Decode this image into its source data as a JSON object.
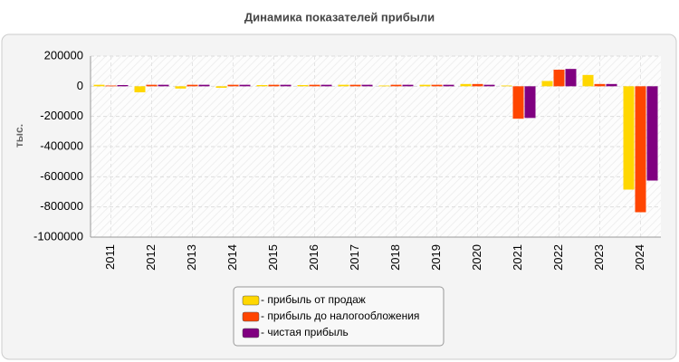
{
  "chart_data": {
    "type": "bar",
    "title": "Динамика показателей прибыли",
    "ylabel": "тыс.",
    "categories": [
      "2011",
      "2012",
      "2013",
      "2014",
      "2015",
      "2016",
      "2017",
      "2018",
      "2019",
      "2020",
      "2021",
      "2022",
      "2023",
      "2024"
    ],
    "series": [
      {
        "name": "- прибыль от продаж",
        "color": "#ffd700",
        "values": [
          10000,
          -40000,
          -15000,
          -10000,
          8000,
          8000,
          10000,
          5000,
          10000,
          15000,
          5000,
          35000,
          75000,
          -685000
        ]
      },
      {
        "name": "- прибыль до налогообложения",
        "color": "#ff4500",
        "values": [
          5000,
          10000,
          10000,
          10000,
          10000,
          10000,
          10000,
          10000,
          10000,
          15000,
          -215000,
          110000,
          15000,
          -835000
        ]
      },
      {
        "name": "- чистая прибыль",
        "color": "#800080",
        "values": [
          8000,
          10000,
          10000,
          10000,
          10000,
          10000,
          10000,
          10000,
          10000,
          10000,
          -210000,
          115000,
          15000,
          -625000
        ]
      }
    ],
    "ylim": [
      -1000000,
      200000
    ],
    "yticks": [
      200000,
      0,
      -200000,
      -400000,
      -600000,
      -800000,
      -1000000
    ],
    "grid": true
  }
}
